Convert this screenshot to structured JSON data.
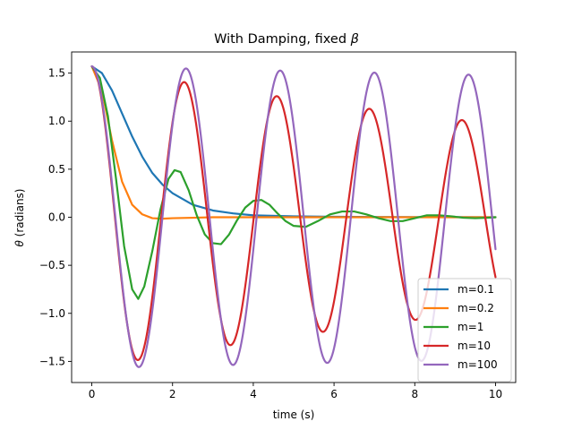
{
  "chart_data": {
    "type": "line",
    "title": "With Damping, fixed β",
    "title_prefix": "With Damping, fixed ",
    "title_symbol": "β",
    "xlabel": "time (s)",
    "ylabel": "θ (radians)",
    "ylabel_symbol": "θ",
    "ylabel_rest": " (radians)",
    "xlim": [
      -0.5,
      10.5
    ],
    "ylim": [
      -1.72,
      1.72
    ],
    "xticks": [
      0,
      2,
      4,
      6,
      8,
      10
    ],
    "xtick_labels": [
      "0",
      "2",
      "4",
      "6",
      "8",
      "10"
    ],
    "yticks": [
      -1.5,
      -1.0,
      -0.5,
      0.0,
      0.5,
      1.0,
      1.5
    ],
    "ytick_labels": [
      "−1.5",
      "−1.0",
      "−0.5",
      "0.0",
      "0.5",
      "1.0",
      "1.5"
    ],
    "grid": false,
    "legend_position": "lower-right",
    "series": [
      {
        "name": "m=0.1",
        "color": "#1f77b4",
        "x": [
          0,
          0.25,
          0.5,
          0.75,
          1.0,
          1.25,
          1.5,
          1.75,
          2.0,
          2.5,
          3.0,
          3.5,
          4.0,
          5.0,
          6.0,
          7.0,
          8.0,
          9.0,
          10.0
        ],
        "y": [
          1.57,
          1.5,
          1.32,
          1.08,
          0.84,
          0.63,
          0.46,
          0.34,
          0.25,
          0.13,
          0.07,
          0.04,
          0.02,
          0.01,
          0.005,
          0.003,
          0.002,
          0.001,
          0.0
        ]
      },
      {
        "name": "m=0.2",
        "color": "#ff7f0e",
        "x": [
          0,
          0.25,
          0.5,
          0.75,
          1.0,
          1.25,
          1.5,
          1.75,
          2.0,
          2.5,
          3.0,
          4.0,
          5.0,
          6.0,
          7.0,
          8.0,
          9.0,
          10.0
        ],
        "y": [
          1.57,
          1.32,
          0.8,
          0.37,
          0.13,
          0.03,
          -0.01,
          -0.015,
          -0.01,
          -0.005,
          0.0,
          0.0,
          0.0,
          0.0,
          0.0,
          0.0,
          0.0,
          0.0
        ]
      },
      {
        "name": "m=1",
        "color": "#2ca02c",
        "x": [
          0,
          0.2,
          0.4,
          0.6,
          0.8,
          1.0,
          1.15,
          1.3,
          1.5,
          1.7,
          1.9,
          2.05,
          2.2,
          2.4,
          2.6,
          2.8,
          3.0,
          3.2,
          3.4,
          3.6,
          3.8,
          4.0,
          4.2,
          4.4,
          4.6,
          4.8,
          5.0,
          5.3,
          5.6,
          5.9,
          6.2,
          6.5,
          6.8,
          7.1,
          7.4,
          7.7,
          8.0,
          8.3,
          8.6,
          8.9,
          9.2,
          9.5,
          9.8,
          10.0
        ],
        "y": [
          1.57,
          1.45,
          1.05,
          0.4,
          -0.3,
          -0.75,
          -0.85,
          -0.72,
          -0.35,
          0.08,
          0.4,
          0.49,
          0.47,
          0.28,
          0.02,
          -0.18,
          -0.27,
          -0.28,
          -0.18,
          -0.03,
          0.1,
          0.17,
          0.18,
          0.13,
          0.04,
          -0.04,
          -0.09,
          -0.1,
          -0.04,
          0.03,
          0.06,
          0.06,
          0.03,
          -0.01,
          -0.04,
          -0.04,
          -0.01,
          0.02,
          0.02,
          0.01,
          -0.005,
          -0.01,
          -0.005,
          0.0
        ]
      },
      {
        "name": "m=10",
        "color": "#d62728",
        "omega": 2.74,
        "decay": 0.048,
        "amp": 1.57
      },
      {
        "name": "m=100",
        "color": "#9467bd",
        "omega": 2.693,
        "decay": 0.006,
        "amp": 1.57
      }
    ],
    "damped_t_max": 10.0,
    "sample_step": 0.02
  }
}
